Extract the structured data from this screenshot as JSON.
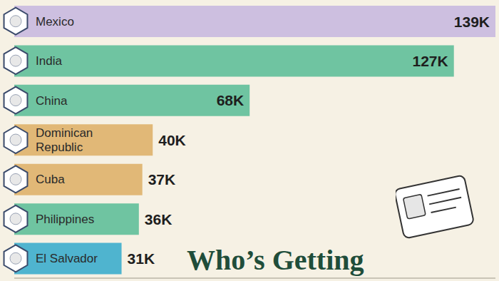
{
  "chart_data": {
    "type": "bar",
    "title": "Who’s Getting",
    "orientation": "horizontal",
    "categories": [
      "Mexico",
      "India",
      "China",
      "Dominican Republic",
      "Cuba",
      "Philippines",
      "El Salvador"
    ],
    "values": [
      139000,
      127000,
      68000,
      40000,
      37000,
      36000,
      31000
    ],
    "value_labels": [
      "139K",
      "127K",
      "68K",
      "40K",
      "37K",
      "36K",
      "31K"
    ],
    "colors": [
      "#cdbfe0",
      "#6fc4a1",
      "#6fc4a1",
      "#e1b877",
      "#e1b877",
      "#6fc4a1",
      "#4fb4cf"
    ],
    "xlim": [
      0,
      139000
    ],
    "data_labels": true,
    "tick_labels": false,
    "grid": false
  }
}
